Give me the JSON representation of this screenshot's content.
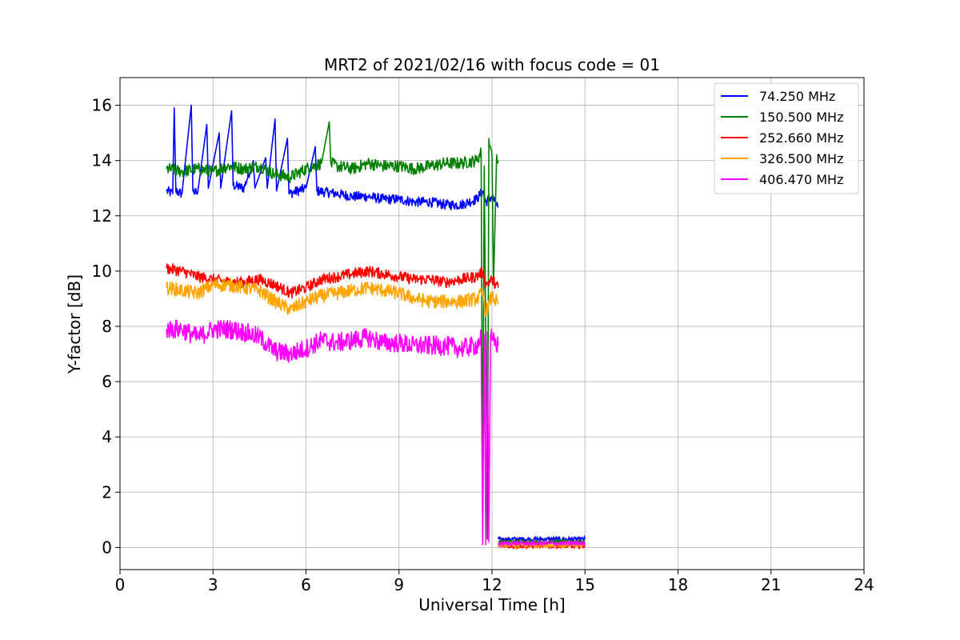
{
  "chart_data": {
    "type": "line",
    "title": "MRT2 of 2021/02/16 with focus code = 01",
    "xlabel": "Universal Time [h]",
    "ylabel": "Y-factor [dB]",
    "xlim": [
      0,
      24
    ],
    "ylim": [
      -0.8,
      17
    ],
    "xticks": [
      0,
      3,
      6,
      9,
      12,
      15,
      18,
      21,
      24
    ],
    "yticks": [
      0,
      2,
      4,
      6,
      8,
      10,
      12,
      14,
      16
    ],
    "grid": true,
    "legend_position": "top-right",
    "series": [
      {
        "name": " 74.250 MHz",
        "color": "#0000ff",
        "points": [
          [
            1.5,
            12.9
          ],
          [
            1.7,
            12.8
          ],
          [
            1.75,
            15.9
          ],
          [
            1.8,
            12.9
          ],
          [
            2.0,
            12.8
          ],
          [
            2.3,
            16.0
          ],
          [
            2.35,
            12.9
          ],
          [
            2.5,
            12.8
          ],
          [
            2.8,
            15.3
          ],
          [
            2.85,
            13.0
          ],
          [
            3.2,
            15.0
          ],
          [
            3.25,
            13.0
          ],
          [
            3.6,
            15.8
          ],
          [
            3.65,
            13.1
          ],
          [
            4.0,
            13.0
          ],
          [
            4.3,
            14.0
          ],
          [
            4.35,
            13.0
          ],
          [
            4.7,
            14.1
          ],
          [
            4.75,
            13.0
          ],
          [
            5.0,
            15.5
          ],
          [
            5.05,
            12.9
          ],
          [
            5.4,
            14.8
          ],
          [
            5.45,
            12.8
          ],
          [
            6.0,
            13.0
          ],
          [
            6.3,
            14.5
          ],
          [
            6.35,
            12.9
          ],
          [
            7.0,
            12.8
          ],
          [
            7.5,
            12.7
          ],
          [
            8.0,
            12.7
          ],
          [
            8.5,
            12.6
          ],
          [
            9.0,
            12.6
          ],
          [
            9.5,
            12.5
          ],
          [
            10.0,
            12.5
          ],
          [
            10.5,
            12.4
          ],
          [
            11.0,
            12.4
          ],
          [
            11.5,
            12.6
          ],
          [
            11.7,
            12.9
          ],
          [
            11.8,
            12.5
          ],
          [
            12.0,
            12.7
          ],
          [
            12.2,
            12.3
          ]
        ]
      },
      {
        "name": "150.500 MHz",
        "color": "#008000",
        "points": [
          [
            1.5,
            13.7
          ],
          [
            2.0,
            13.6
          ],
          [
            2.5,
            13.7
          ],
          [
            3.0,
            13.6
          ],
          [
            3.5,
            13.8
          ],
          [
            4.0,
            13.7
          ],
          [
            4.5,
            13.8
          ],
          [
            5.0,
            13.5
          ],
          [
            5.5,
            13.4
          ],
          [
            6.0,
            13.7
          ],
          [
            6.5,
            13.9
          ],
          [
            6.75,
            15.4
          ],
          [
            6.8,
            13.9
          ],
          [
            7.0,
            13.8
          ],
          [
            7.5,
            13.7
          ],
          [
            8.0,
            13.9
          ],
          [
            8.5,
            13.8
          ],
          [
            9.0,
            13.8
          ],
          [
            9.5,
            13.7
          ],
          [
            10.0,
            13.8
          ],
          [
            10.5,
            13.9
          ],
          [
            11.0,
            13.9
          ],
          [
            11.5,
            14.0
          ],
          [
            11.65,
            14.3
          ],
          [
            11.7,
            1.5
          ],
          [
            11.75,
            13.8
          ],
          [
            11.85,
            0.3
          ],
          [
            11.9,
            14.8
          ],
          [
            12.0,
            14.2
          ],
          [
            12.05,
            9.5
          ],
          [
            12.15,
            14.2
          ],
          [
            12.2,
            14.0
          ]
        ]
      },
      {
        "name": "252.660 MHz",
        "color": "#ff0000",
        "points": [
          [
            1.5,
            10.1
          ],
          [
            2.0,
            10.0
          ],
          [
            2.5,
            9.8
          ],
          [
            3.0,
            9.7
          ],
          [
            3.5,
            9.6
          ],
          [
            4.0,
            9.6
          ],
          [
            4.5,
            9.7
          ],
          [
            5.0,
            9.5
          ],
          [
            5.5,
            9.2
          ],
          [
            6.0,
            9.4
          ],
          [
            6.5,
            9.7
          ],
          [
            7.0,
            9.8
          ],
          [
            7.5,
            9.9
          ],
          [
            8.0,
            10.0
          ],
          [
            8.5,
            9.9
          ],
          [
            9.0,
            9.8
          ],
          [
            9.5,
            9.7
          ],
          [
            10.0,
            9.7
          ],
          [
            10.5,
            9.6
          ],
          [
            11.0,
            9.7
          ],
          [
            11.5,
            9.8
          ],
          [
            11.7,
            10.0
          ],
          [
            11.8,
            9.5
          ],
          [
            12.0,
            9.7
          ],
          [
            12.2,
            9.4
          ]
        ]
      },
      {
        "name": "326.500 MHz",
        "color": "#ffa500",
        "points": [
          [
            1.5,
            9.4
          ],
          [
            2.0,
            9.3
          ],
          [
            2.5,
            9.2
          ],
          [
            3.0,
            9.5
          ],
          [
            3.5,
            9.5
          ],
          [
            4.0,
            9.4
          ],
          [
            4.5,
            9.3
          ],
          [
            5.0,
            8.9
          ],
          [
            5.5,
            8.6
          ],
          [
            6.0,
            8.9
          ],
          [
            6.5,
            9.1
          ],
          [
            7.0,
            9.2
          ],
          [
            7.5,
            9.3
          ],
          [
            8.0,
            9.4
          ],
          [
            8.5,
            9.3
          ],
          [
            9.0,
            9.2
          ],
          [
            9.5,
            9.0
          ],
          [
            10.0,
            8.9
          ],
          [
            10.5,
            8.9
          ],
          [
            11.0,
            8.9
          ],
          [
            11.5,
            9.0
          ],
          [
            11.7,
            9.2
          ],
          [
            11.8,
            8.5
          ],
          [
            12.0,
            9.1
          ],
          [
            12.2,
            8.8
          ]
        ]
      },
      {
        "name": "406.470 MHz",
        "color": "#ff00ff",
        "points": [
          [
            1.5,
            7.9
          ],
          [
            2.0,
            7.9
          ],
          [
            2.5,
            7.6
          ],
          [
            3.0,
            7.9
          ],
          [
            3.5,
            7.9
          ],
          [
            4.0,
            7.8
          ],
          [
            4.5,
            7.6
          ],
          [
            5.0,
            7.1
          ],
          [
            5.5,
            7.0
          ],
          [
            6.0,
            7.2
          ],
          [
            6.5,
            7.5
          ],
          [
            7.0,
            7.4
          ],
          [
            7.5,
            7.5
          ],
          [
            8.0,
            7.6
          ],
          [
            8.5,
            7.4
          ],
          [
            9.0,
            7.4
          ],
          [
            9.5,
            7.3
          ],
          [
            10.0,
            7.3
          ],
          [
            10.5,
            7.3
          ],
          [
            11.0,
            7.2
          ],
          [
            11.5,
            7.3
          ],
          [
            11.65,
            7.6
          ],
          [
            11.7,
            0.1
          ],
          [
            11.75,
            7.7
          ],
          [
            11.8,
            0.1
          ],
          [
            11.85,
            7.8
          ],
          [
            11.9,
            0.2
          ],
          [
            11.95,
            7.7
          ],
          [
            12.0,
            7.5
          ],
          [
            12.2,
            7.3
          ]
        ]
      }
    ],
    "tail": {
      "x_start": 12.2,
      "x_end": 15.0,
      "series_levels": [
        0.3,
        0.2,
        0.05,
        0.08,
        0.15
      ]
    }
  }
}
